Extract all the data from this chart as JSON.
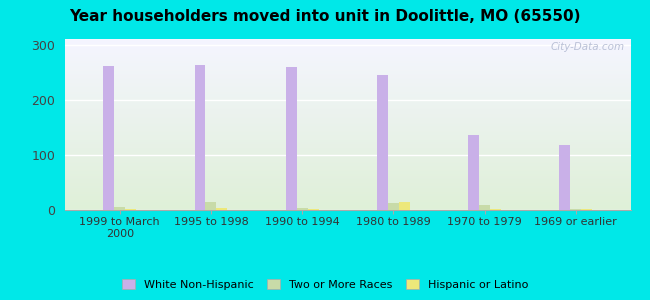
{
  "title": "Year householders moved into unit in Doolittle, MO (65550)",
  "categories": [
    "1999 to March\n2000",
    "1995 to 1998",
    "1990 to 1994",
    "1980 to 1989",
    "1970 to 1979",
    "1969 or earlier"
  ],
  "white_non_hispanic": [
    261,
    262,
    259,
    244,
    136,
    118
  ],
  "two_or_more_races": [
    5,
    14,
    3,
    13,
    9,
    2
  ],
  "hispanic_or_latino": [
    2,
    3,
    2,
    14,
    2,
    2
  ],
  "bar_colors": {
    "white_non_hispanic": "#c9b0e8",
    "two_or_more_races": "#c8dba8",
    "hispanic_or_latino": "#ede87a"
  },
  "legend_labels": [
    "White Non-Hispanic",
    "Two or More Races",
    "Hispanic or Latino"
  ],
  "ylim": [
    0,
    310
  ],
  "yticks": [
    0,
    100,
    200,
    300
  ],
  "figure_bg": "#00e8e8",
  "plot_bg_top": "#f5f5ff",
  "plot_bg_bottom": "#dff0d8",
  "watermark": "City-Data.com",
  "bar_width": 0.12
}
